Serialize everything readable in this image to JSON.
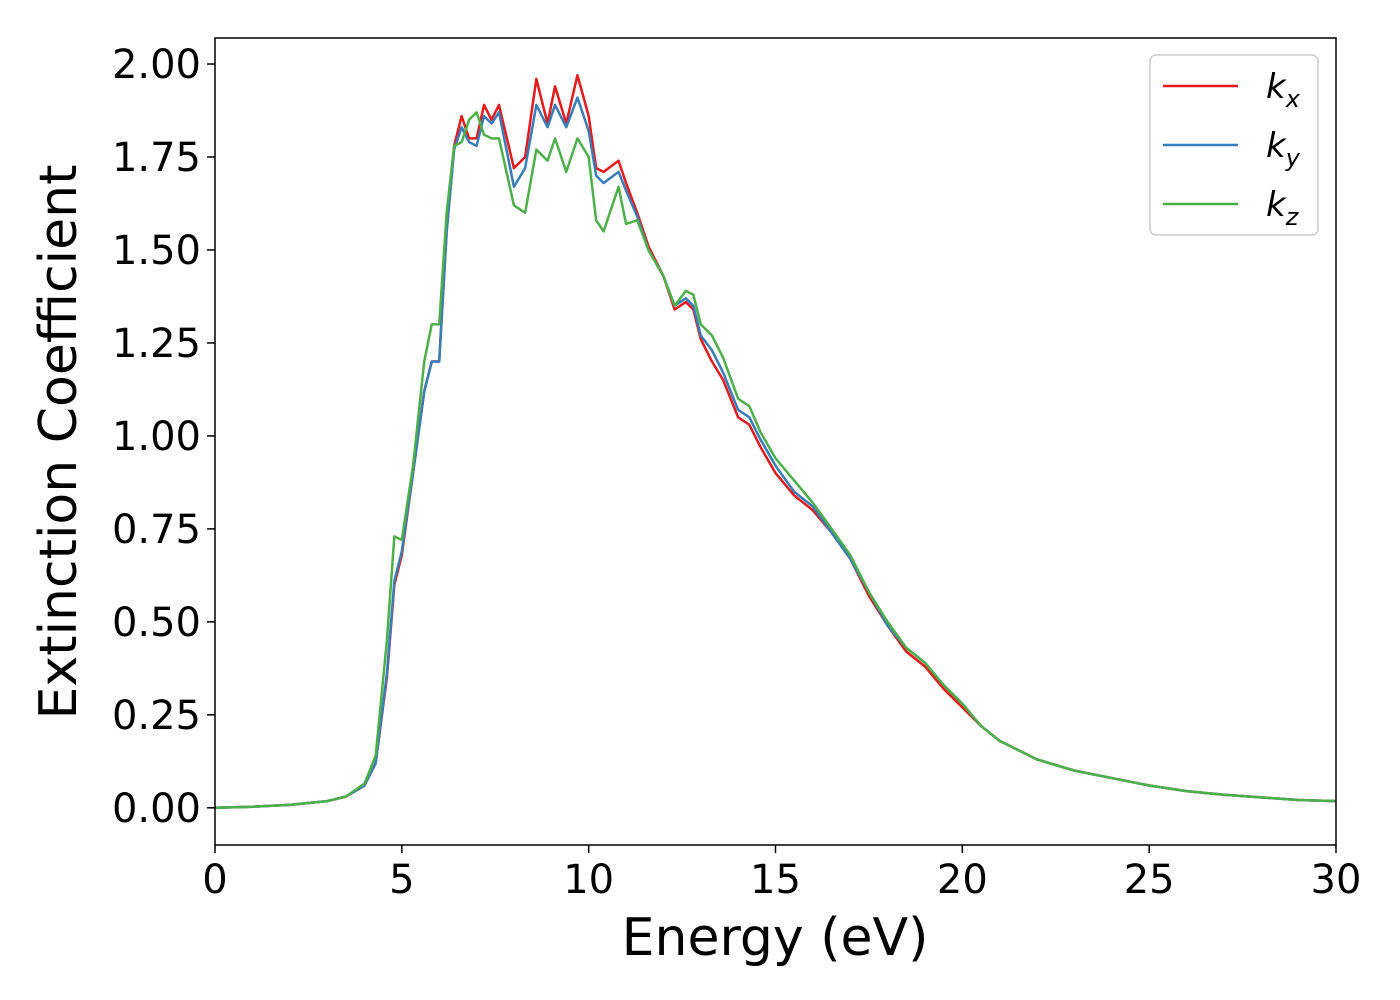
{
  "chart_data": {
    "type": "line",
    "x_label": "Energy (eV)",
    "y_label": "Extinction Coefficient",
    "xlim": [
      0,
      30
    ],
    "xticks": [
      0,
      5,
      10,
      15,
      20,
      25,
      30
    ],
    "ylim": [
      -0.1,
      2.07
    ],
    "yticks": [
      {
        "value": 0,
        "label": "0.00"
      },
      0.25,
      {
        "value": 0.5,
        "label": "0.50"
      },
      0.75,
      {
        "value": 1,
        "label": "1.00"
      },
      1.25,
      {
        "value": 1.5,
        "label": "1.50"
      },
      1.75,
      {
        "value": 2,
        "label": "2.00"
      }
    ],
    "legend": "upper right",
    "x": [
      0,
      1,
      2,
      3,
      3.5,
      4,
      4.3,
      4.6,
      4.8,
      5.0,
      5.3,
      5.6,
      5.8,
      6.0,
      6.2,
      6.4,
      6.6,
      6.8,
      7.0,
      7.2,
      7.4,
      7.6,
      8.0,
      8.3,
      8.6,
      8.9,
      9.1,
      9.4,
      9.7,
      10.0,
      10.2,
      10.4,
      10.8,
      11.0,
      11.3,
      11.6,
      12.0,
      12.3,
      12.6,
      12.8,
      13.0,
      13.3,
      13.6,
      14.0,
      14.3,
      14.6,
      15.0,
      15.5,
      16.0,
      16.5,
      17.0,
      17.5,
      18.0,
      18.5,
      19.0,
      19.5,
      20.0,
      20.5,
      21,
      22,
      23,
      24,
      25,
      26,
      27,
      28,
      29,
      30
    ],
    "series": [
      {
        "name": "kx",
        "color": "#e41a1c",
        "values": [
          0,
          0.003,
          0.008,
          0.018,
          0.03,
          0.06,
          0.12,
          0.35,
          0.6,
          0.68,
          0.9,
          1.12,
          1.2,
          1.2,
          1.55,
          1.78,
          1.86,
          1.8,
          1.8,
          1.89,
          1.85,
          1.89,
          1.72,
          1.75,
          1.96,
          1.84,
          1.94,
          1.84,
          1.97,
          1.86,
          1.72,
          1.71,
          1.74,
          1.68,
          1.6,
          1.51,
          1.43,
          1.34,
          1.36,
          1.34,
          1.26,
          1.2,
          1.15,
          1.05,
          1.03,
          0.97,
          0.9,
          0.84,
          0.8,
          0.74,
          0.67,
          0.57,
          0.49,
          0.42,
          0.38,
          0.32,
          0.27,
          0.22,
          0.18,
          0.13,
          0.1,
          0.08,
          0.06,
          0.045,
          0.035,
          0.028,
          0.021,
          0.018
        ]
      },
      {
        "name": "ky",
        "color": "#377eb8",
        "values": [
          0,
          0.003,
          0.008,
          0.018,
          0.03,
          0.06,
          0.12,
          0.36,
          0.61,
          0.69,
          0.9,
          1.12,
          1.2,
          1.2,
          1.55,
          1.77,
          1.83,
          1.79,
          1.78,
          1.86,
          1.84,
          1.87,
          1.67,
          1.72,
          1.89,
          1.83,
          1.89,
          1.83,
          1.91,
          1.82,
          1.7,
          1.68,
          1.71,
          1.66,
          1.59,
          1.5,
          1.43,
          1.35,
          1.37,
          1.35,
          1.27,
          1.23,
          1.17,
          1.07,
          1.05,
          0.99,
          0.92,
          0.85,
          0.81,
          0.74,
          0.67,
          0.58,
          0.49,
          0.43,
          0.39,
          0.33,
          0.28,
          0.22,
          0.18,
          0.13,
          0.1,
          0.08,
          0.06,
          0.045,
          0.035,
          0.028,
          0.021,
          0.018
        ]
      },
      {
        "name": "kz",
        "color": "#4daf4a",
        "values": [
          0,
          0.003,
          0.008,
          0.018,
          0.03,
          0.065,
          0.14,
          0.45,
          0.73,
          0.72,
          0.92,
          1.2,
          1.3,
          1.3,
          1.6,
          1.78,
          1.79,
          1.85,
          1.87,
          1.81,
          1.8,
          1.8,
          1.62,
          1.6,
          1.77,
          1.74,
          1.8,
          1.71,
          1.8,
          1.75,
          1.58,
          1.55,
          1.67,
          1.57,
          1.58,
          1.5,
          1.43,
          1.35,
          1.39,
          1.38,
          1.3,
          1.27,
          1.21,
          1.1,
          1.08,
          1.01,
          0.94,
          0.88,
          0.82,
          0.75,
          0.68,
          0.58,
          0.5,
          0.43,
          0.39,
          0.33,
          0.28,
          0.22,
          0.18,
          0.13,
          0.1,
          0.08,
          0.06,
          0.045,
          0.035,
          0.028,
          0.021,
          0.018
        ]
      }
    ]
  }
}
